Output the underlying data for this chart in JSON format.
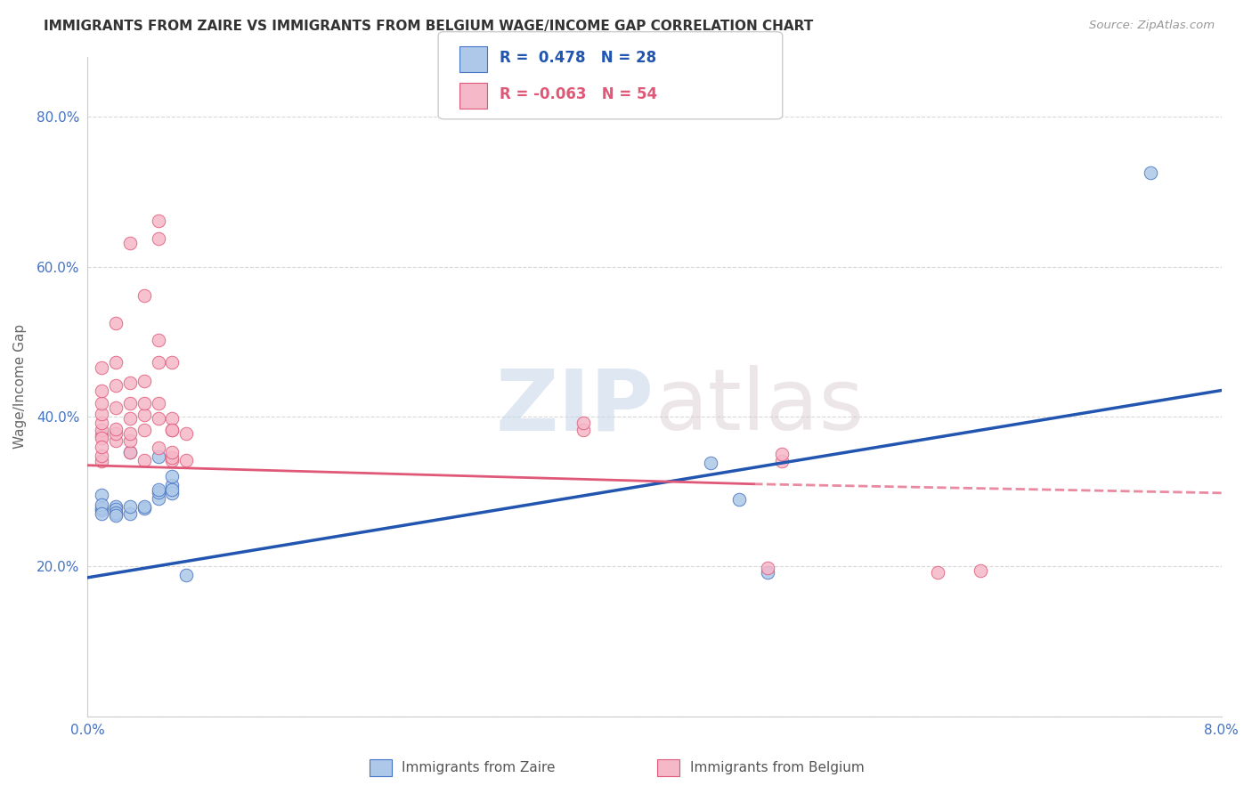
{
  "title": "IMMIGRANTS FROM ZAIRE VS IMMIGRANTS FROM BELGIUM WAGE/INCOME GAP CORRELATION CHART",
  "source": "Source: ZipAtlas.com",
  "ylabel": "Wage/Income Gap",
  "xlim": [
    0.0,
    0.08
  ],
  "ylim": [
    0.0,
    0.88
  ],
  "yticks": [
    0.0,
    0.2,
    0.4,
    0.6,
    0.8
  ],
  "ytick_labels": [
    "",
    "20.0%",
    "40.0%",
    "60.0%",
    "80.0%"
  ],
  "zaire_color": "#adc8e8",
  "belgium_color": "#f5b8c8",
  "zaire_edge_color": "#4472c4",
  "belgium_edge_color": "#e05878",
  "zaire_line_color": "#2255b0",
  "belgium_line_color": "#e05878",
  "background_color": "#ffffff",
  "grid_color": "#d8d8d8",
  "zaire_R": "0.478",
  "zaire_N": "28",
  "belgium_R": "-0.063",
  "belgium_N": "54",
  "zaire_line": [
    [
      0.0,
      0.185
    ],
    [
      0.08,
      0.435
    ]
  ],
  "belgium_line_solid": [
    [
      0.0,
      0.335
    ],
    [
      0.047,
      0.31
    ]
  ],
  "belgium_line_dash": [
    [
      0.047,
      0.31
    ],
    [
      0.08,
      0.298
    ]
  ],
  "zaire_points": [
    [
      0.001,
      0.295
    ],
    [
      0.001,
      0.275
    ],
    [
      0.001,
      0.278
    ],
    [
      0.001,
      0.282
    ],
    [
      0.001,
      0.27
    ],
    [
      0.002,
      0.28
    ],
    [
      0.002,
      0.276
    ],
    [
      0.002,
      0.271
    ],
    [
      0.002,
      0.272
    ],
    [
      0.002,
      0.268
    ],
    [
      0.003,
      0.27
    ],
    [
      0.003,
      0.352
    ],
    [
      0.003,
      0.28
    ],
    [
      0.004,
      0.278
    ],
    [
      0.004,
      0.28
    ],
    [
      0.005,
      0.347
    ],
    [
      0.005,
      0.291
    ],
    [
      0.005,
      0.299
    ],
    [
      0.005,
      0.303
    ],
    [
      0.006,
      0.308
    ],
    [
      0.006,
      0.32
    ],
    [
      0.006,
      0.298
    ],
    [
      0.006,
      0.302
    ],
    [
      0.007,
      0.188
    ],
    [
      0.044,
      0.338
    ],
    [
      0.046,
      0.289
    ],
    [
      0.048,
      0.192
    ],
    [
      0.075,
      0.725
    ]
  ],
  "belgium_points": [
    [
      0.001,
      0.34
    ],
    [
      0.001,
      0.375
    ],
    [
      0.001,
      0.382
    ],
    [
      0.001,
      0.392
    ],
    [
      0.001,
      0.403
    ],
    [
      0.001,
      0.418
    ],
    [
      0.001,
      0.435
    ],
    [
      0.001,
      0.465
    ],
    [
      0.001,
      0.372
    ],
    [
      0.001,
      0.348
    ],
    [
      0.001,
      0.36
    ],
    [
      0.002,
      0.368
    ],
    [
      0.002,
      0.378
    ],
    [
      0.002,
      0.383
    ],
    [
      0.002,
      0.412
    ],
    [
      0.002,
      0.442
    ],
    [
      0.002,
      0.472
    ],
    [
      0.002,
      0.525
    ],
    [
      0.003,
      0.352
    ],
    [
      0.003,
      0.368
    ],
    [
      0.003,
      0.378
    ],
    [
      0.003,
      0.398
    ],
    [
      0.003,
      0.418
    ],
    [
      0.003,
      0.445
    ],
    [
      0.003,
      0.632
    ],
    [
      0.004,
      0.342
    ],
    [
      0.004,
      0.382
    ],
    [
      0.004,
      0.402
    ],
    [
      0.004,
      0.418
    ],
    [
      0.004,
      0.448
    ],
    [
      0.004,
      0.562
    ],
    [
      0.005,
      0.358
    ],
    [
      0.005,
      0.398
    ],
    [
      0.005,
      0.418
    ],
    [
      0.005,
      0.472
    ],
    [
      0.005,
      0.502
    ],
    [
      0.005,
      0.638
    ],
    [
      0.005,
      0.662
    ],
    [
      0.006,
      0.382
    ],
    [
      0.006,
      0.398
    ],
    [
      0.006,
      0.342
    ],
    [
      0.006,
      0.382
    ],
    [
      0.006,
      0.472
    ],
    [
      0.006,
      0.345
    ],
    [
      0.006,
      0.352
    ],
    [
      0.007,
      0.342
    ],
    [
      0.007,
      0.378
    ],
    [
      0.035,
      0.382
    ],
    [
      0.035,
      0.392
    ],
    [
      0.048,
      0.198
    ],
    [
      0.049,
      0.34
    ],
    [
      0.049,
      0.35
    ],
    [
      0.06,
      0.192
    ],
    [
      0.063,
      0.195
    ]
  ],
  "legend_label_1": "R =  0.478   N = 28",
  "legend_label_2": "R = -0.063   N = 54",
  "legend_color_1": "#2255b0",
  "legend_color_2": "#e05878",
  "bottom_label_zaire": "Immigrants from Zaire",
  "bottom_label_belgium": "Immigrants from Belgium",
  "watermark_text": "ZIPatlas"
}
